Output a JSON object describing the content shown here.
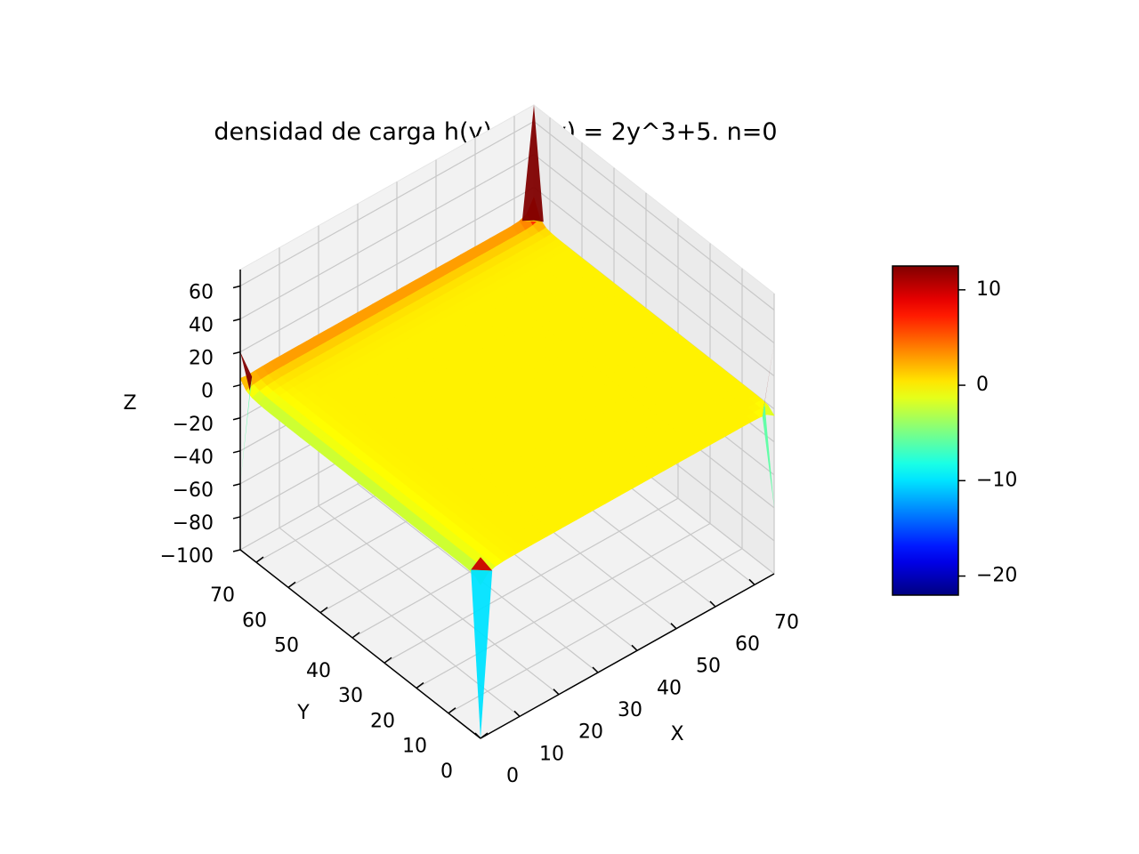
{
  "chart_data": {
    "type": "surface3d",
    "title": "densidad de carga h(y) = g(y) = 2y^3+5. n=0",
    "xlabel": "X",
    "ylabel": "Y",
    "zlabel": "Z",
    "x_range": [
      0,
      75
    ],
    "y_range": [
      0,
      75
    ],
    "z_range": [
      -100,
      70
    ],
    "x_ticks": [
      0,
      10,
      20,
      30,
      40,
      50,
      60,
      70
    ],
    "y_ticks": [
      0,
      10,
      20,
      30,
      40,
      50,
      60,
      70
    ],
    "z_ticks": [
      -100,
      -80,
      -60,
      -40,
      -20,
      0,
      20,
      40,
      60
    ],
    "x_tick_labels": [
      "0",
      "10",
      "20",
      "30",
      "40",
      "50",
      "60",
      "70"
    ],
    "y_tick_labels": [
      "0",
      "10",
      "20",
      "30",
      "40",
      "50",
      "60",
      "70"
    ],
    "z_tick_labels": [
      "−100",
      "−80",
      "−60",
      "−40",
      "−20",
      "0",
      "20",
      "40",
      "60"
    ],
    "grid": true,
    "colormap": "jet",
    "colorbar": {
      "range": [
        -22,
        12.5
      ],
      "ticks": [
        -20,
        -10,
        0,
        10
      ],
      "tick_labels": [
        "−20",
        "−10",
        "0",
        "10"
      ],
      "placement": "right"
    },
    "surface": {
      "plateau_z": 0,
      "edge_x0_z": -3,
      "edge_y_max_z": 4,
      "corner_spikes": [
        {
          "x": 0,
          "y": 0,
          "z_max": 10,
          "z_min": -100
        },
        {
          "x": 75,
          "y": 0,
          "z_max": 40,
          "z_min": -60
        },
        {
          "x": 0,
          "y": 75,
          "z_max": 20,
          "z_min": -60
        },
        {
          "x": 75,
          "y": 75,
          "z_max": 70,
          "z_min": 0
        }
      ]
    }
  }
}
